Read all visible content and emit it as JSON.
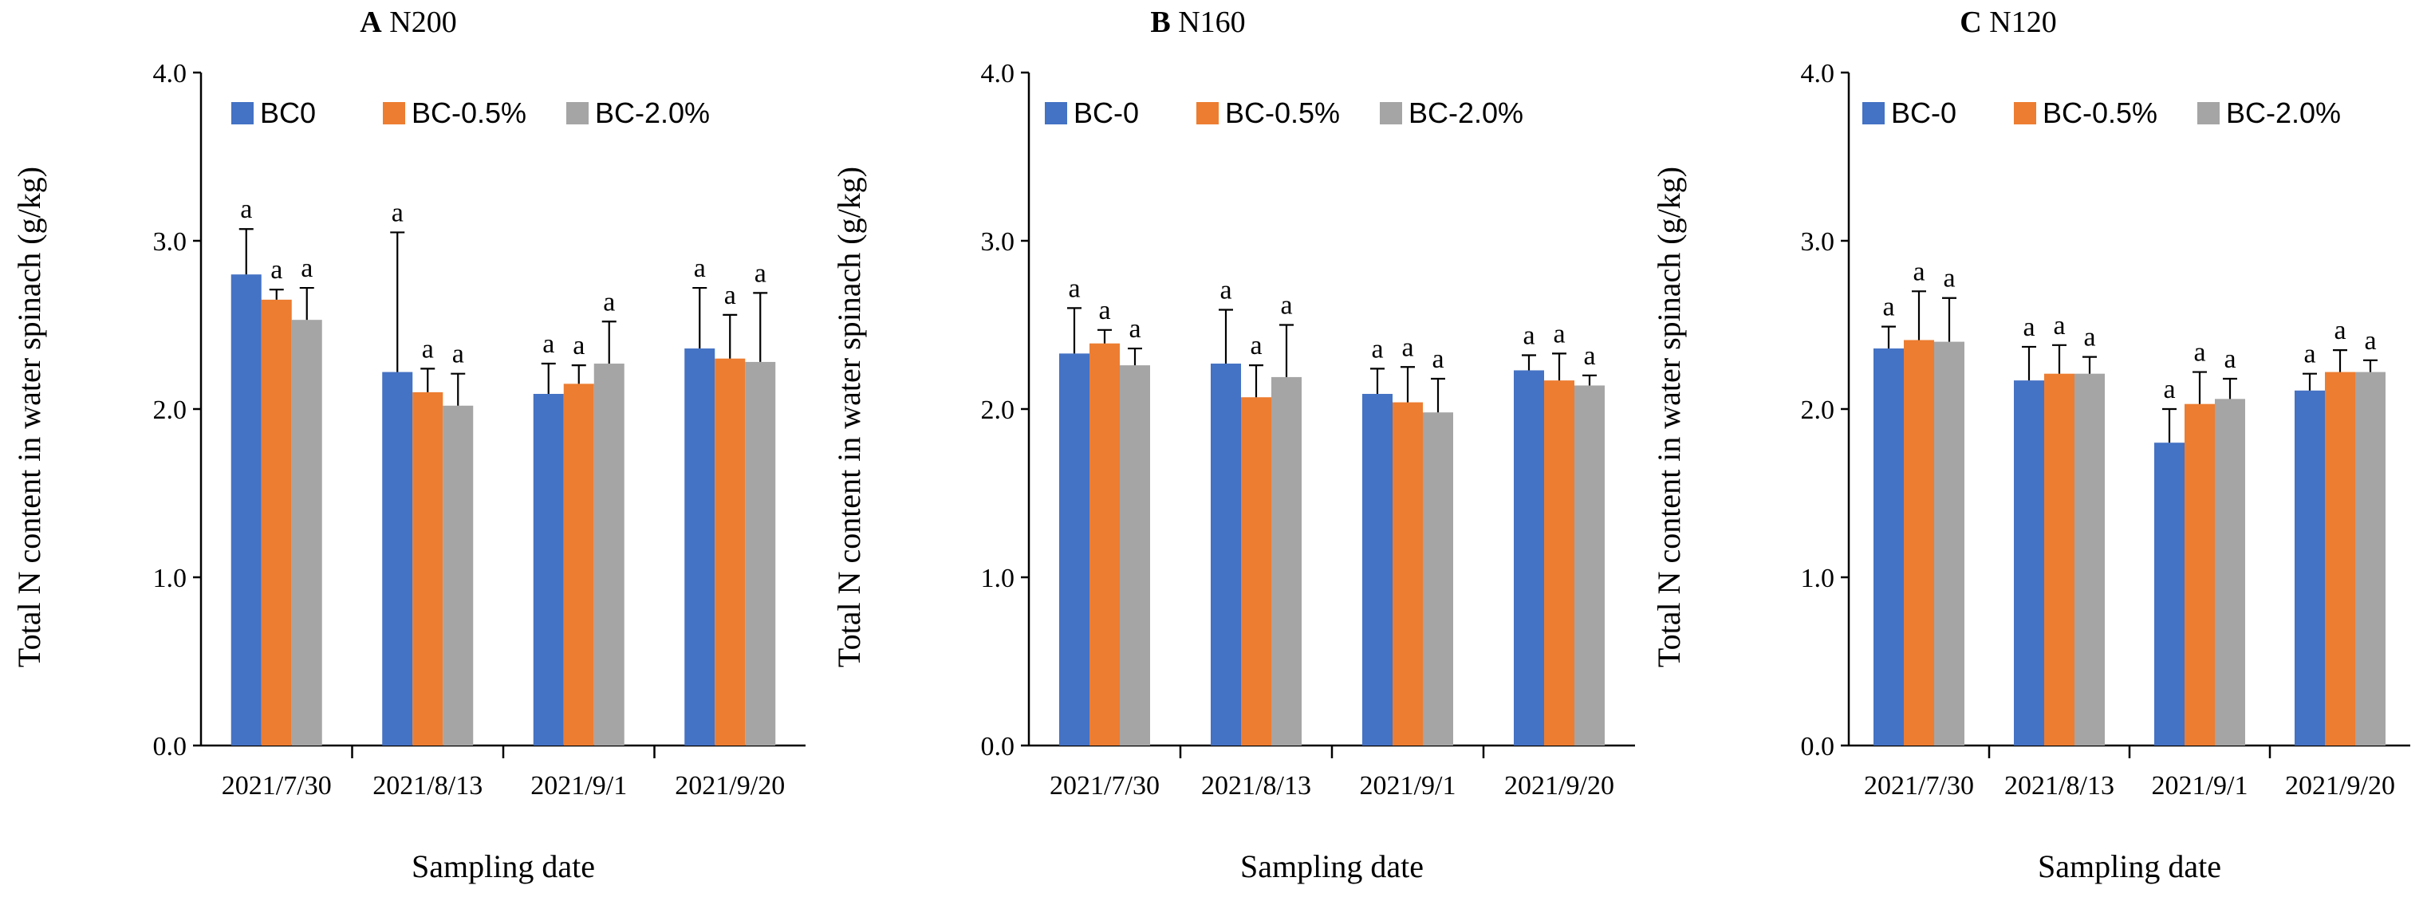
{
  "chart_data": [
    {
      "type": "bar",
      "panel": "A",
      "title": "N200",
      "categories": [
        "2021/7/30",
        "2021/8/13",
        "2021/9/1",
        "2021/9/20"
      ],
      "series": [
        {
          "name": "BC0",
          "color": "#4472C4",
          "values": [
            2.8,
            2.22,
            2.09,
            2.36
          ],
          "errors": [
            0.27,
            0.83,
            0.18,
            0.36
          ],
          "labels": [
            "a",
            "a",
            "a",
            "a"
          ]
        },
        {
          "name": "BC-0.5%",
          "color": "#ED7D31",
          "values": [
            2.65,
            2.1,
            2.15,
            2.3
          ],
          "errors": [
            0.06,
            0.14,
            0.11,
            0.26
          ],
          "labels": [
            "a",
            "a",
            "a",
            "a"
          ]
        },
        {
          "name": "BC-2.0%",
          "color": "#A5A5A5",
          "values": [
            2.53,
            2.02,
            2.27,
            2.28
          ],
          "errors": [
            0.19,
            0.19,
            0.25,
            0.41
          ],
          "labels": [
            "a",
            "a",
            "a",
            "a"
          ]
        }
      ],
      "xlabel": "Sampling date",
      "ylabel": "Total N content in water spinach (g/kg)",
      "ylim": [
        0,
        4
      ],
      "yticks": [
        "0.0",
        "1.0",
        "2.0",
        "3.0",
        "4.0"
      ],
      "legend": "top",
      "grid": false
    },
    {
      "type": "bar",
      "panel": "B",
      "title": "N160",
      "categories": [
        "2021/7/30",
        "2021/8/13",
        "2021/9/1",
        "2021/9/20"
      ],
      "series": [
        {
          "name": "BC-0",
          "color": "#4472C4",
          "values": [
            2.33,
            2.27,
            2.09,
            2.23
          ],
          "errors": [
            0.27,
            0.32,
            0.15,
            0.09
          ],
          "labels": [
            "a",
            "a",
            "a",
            "a"
          ]
        },
        {
          "name": "BC-0.5%",
          "color": "#ED7D31",
          "values": [
            2.39,
            2.07,
            2.04,
            2.17
          ],
          "errors": [
            0.08,
            0.19,
            0.21,
            0.16
          ],
          "labels": [
            "a",
            "a",
            "a",
            "a"
          ]
        },
        {
          "name": "BC-2.0%",
          "color": "#A5A5A5",
          "values": [
            2.26,
            2.19,
            1.98,
            2.14
          ],
          "errors": [
            0.1,
            0.31,
            0.2,
            0.06
          ],
          "labels": [
            "a",
            "a",
            "a",
            "a"
          ]
        }
      ],
      "xlabel": "Sampling date",
      "ylabel": "Total N content in water spinach (g/kg)",
      "ylim": [
        0,
        4
      ],
      "yticks": [
        "0.0",
        "1.0",
        "2.0",
        "3.0",
        "4.0"
      ],
      "legend": "top",
      "grid": false
    },
    {
      "type": "bar",
      "panel": "C",
      "title": "N120",
      "categories": [
        "2021/7/30",
        "2021/8/13",
        "2021/9/1",
        "2021/9/20"
      ],
      "series": [
        {
          "name": "BC-0",
          "color": "#4472C4",
          "values": [
            2.36,
            2.17,
            1.8,
            2.11
          ],
          "errors": [
            0.13,
            0.2,
            0.2,
            0.1
          ],
          "labels": [
            "a",
            "a",
            "a",
            "a"
          ]
        },
        {
          "name": "BC-0.5%",
          "color": "#ED7D31",
          "values": [
            2.41,
            2.21,
            2.03,
            2.22
          ],
          "errors": [
            0.29,
            0.17,
            0.19,
            0.13
          ],
          "labels": [
            "a",
            "a",
            "a",
            "a"
          ]
        },
        {
          "name": "BC-2.0%",
          "color": "#A5A5A5",
          "values": [
            2.4,
            2.21,
            2.06,
            2.22
          ],
          "errors": [
            0.26,
            0.1,
            0.12,
            0.07
          ],
          "labels": [
            "a",
            "a",
            "a",
            "a"
          ]
        }
      ],
      "xlabel": "Sampling date",
      "ylabel": "Total N content in water spinach (g/kg)",
      "ylim": [
        0,
        4
      ],
      "yticks": [
        "0.0",
        "1.0",
        "2.0",
        "3.0",
        "4.0"
      ],
      "legend": "top",
      "grid": false
    }
  ]
}
